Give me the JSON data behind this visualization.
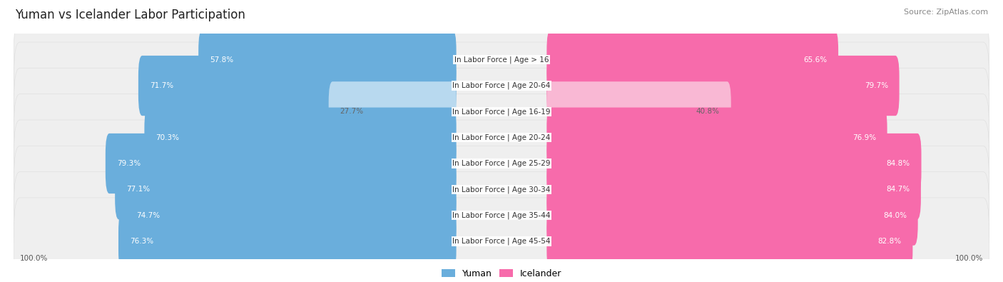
{
  "title": "Yuman vs Icelander Labor Participation",
  "source": "Source: ZipAtlas.com",
  "categories": [
    "In Labor Force | Age > 16",
    "In Labor Force | Age 20-64",
    "In Labor Force | Age 16-19",
    "In Labor Force | Age 20-24",
    "In Labor Force | Age 25-29",
    "In Labor Force | Age 30-34",
    "In Labor Force | Age 35-44",
    "In Labor Force | Age 45-54"
  ],
  "yuman_values": [
    57.8,
    71.7,
    27.7,
    70.3,
    79.3,
    77.1,
    74.7,
    76.3
  ],
  "icelander_values": [
    65.6,
    79.7,
    40.8,
    76.9,
    84.8,
    84.7,
    84.0,
    82.8
  ],
  "yuman_color_strong": "#6aaedc",
  "yuman_color_light": "#b8d9ef",
  "icelander_color_strong": "#f76bab",
  "icelander_color_light": "#f9b8d4",
  "row_bg_color": "#efefef",
  "row_bg_edge": "#e0e0e0",
  "title_fontsize": 12,
  "source_fontsize": 8,
  "label_fontsize": 7.5,
  "value_fontsize": 7.5,
  "legend_yuman": "Yuman",
  "legend_icelander": "Icelander",
  "background_color": "#ffffff",
  "light_indices": [
    2
  ]
}
